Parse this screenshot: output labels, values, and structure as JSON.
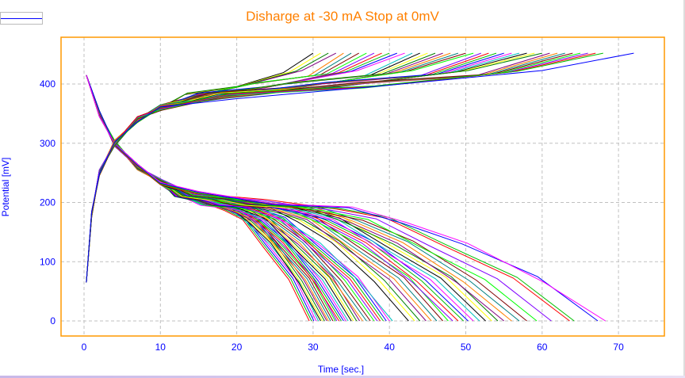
{
  "chart_data": {
    "type": "line",
    "title": "Disharge at -30 mA Stop at 0mV",
    "xlabel": "Time [sec.]",
    "ylabel": "Potential [mV]",
    "xlim": [
      -3,
      76
    ],
    "ylim": [
      -25,
      480
    ],
    "xticks": [
      0,
      10,
      20,
      30,
      40,
      50,
      60,
      70
    ],
    "yticks": [
      0,
      100,
      200,
      300,
      400
    ],
    "grid": true,
    "legend_position": "top-left",
    "colors": [
      "#ff0000",
      "#00c000",
      "#0000ff",
      "#ff00ff",
      "#00c0c0",
      "#000000",
      "#ffff00",
      "#008000",
      "#800080",
      "#ff8000",
      "#008080",
      "#800000",
      "#00ff00",
      "#8000ff"
    ],
    "discharge_template": {
      "x": [
        0.3,
        2,
        4,
        7,
        10,
        15,
        25,
        35,
        42,
        50,
        60,
        68
      ],
      "y": [
        415,
        350,
        300,
        260,
        235,
        215,
        200,
        190,
        170,
        130,
        70,
        0
      ]
    },
    "charge_template": {
      "x": [
        0.3,
        1,
        2,
        4,
        7,
        10,
        20,
        40,
        60,
        72
      ],
      "y": [
        65,
        180,
        250,
        300,
        340,
        360,
        380,
        398,
        418,
        452
      ]
    },
    "discharge_end_times": [
      29.5,
      29.8,
      30.1,
      30.4,
      30.7,
      31,
      31.2,
      31.5,
      31.8,
      32,
      32.3,
      32.6,
      32.9,
      33.1,
      33.4,
      33.7,
      34,
      34.3,
      34.6,
      35,
      35.3,
      35.7,
      36.1,
      36.5,
      37,
      37.5,
      38,
      38.4,
      38.8,
      39.2,
      39.6,
      40,
      40.4,
      42.5,
      43.3,
      44,
      44.8,
      45.5,
      46.2,
      47,
      47.7,
      48.3,
      49,
      49.7,
      50.3,
      51,
      51.8,
      52.6,
      53.4,
      54.2,
      55,
      56,
      57,
      58,
      59.3,
      61.2,
      63.6,
      64.2,
      67.3,
      68.3
    ],
    "charge_end_times": [
      30,
      31,
      32,
      33,
      34,
      35,
      36,
      37,
      38,
      39,
      40,
      41,
      42,
      43,
      44,
      45,
      46,
      47,
      48,
      49,
      50,
      51,
      52,
      53,
      54,
      55,
      56,
      57,
      58,
      59,
      60,
      61,
      62,
      63,
      64,
      65,
      66,
      67,
      68,
      72
    ]
  }
}
